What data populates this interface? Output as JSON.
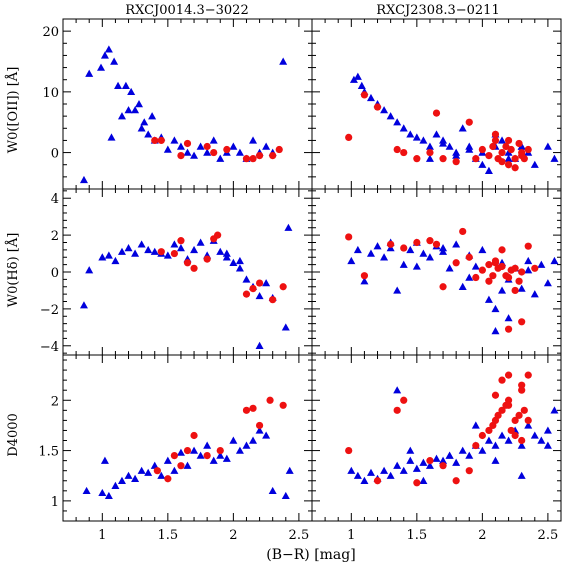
{
  "figure": {
    "column_titles": [
      "RXCJ0014.3−3022",
      "RXCJ2308.3−0211"
    ],
    "xlabel": "(B−R) [mag]",
    "colors": {
      "triangle": "#0000dd",
      "circle": "#ee1111"
    }
  },
  "chart_data": [
    {
      "type": "scatter",
      "cluster": "RXCJ0014.3−3022",
      "row": 0,
      "col": 0,
      "ylabel": "W0([OII]) [Å]",
      "xlim": [
        0.7,
        2.6
      ],
      "ylim": [
        -6,
        22
      ],
      "xticks": [
        1,
        1.5,
        2,
        2.5
      ],
      "xtick_labels": [
        "",
        "",
        "",
        ""
      ],
      "yticks": [
        0,
        10,
        20
      ],
      "ytick_labels": [
        "0",
        "10",
        "20"
      ],
      "series": [
        {
          "marker": "triangle",
          "x": [
            0.86,
            0.9,
            0.99,
            1.02,
            1.05,
            1.07,
            1.09,
            1.12,
            1.15,
            1.18,
            1.2,
            1.22,
            1.25,
            1.28,
            1.3,
            1.32,
            1.35,
            1.38,
            1.4,
            1.45,
            1.5,
            1.55,
            1.6,
            1.65,
            1.7,
            1.75,
            1.8,
            1.85,
            1.9,
            1.95,
            2.0,
            2.05,
            2.1,
            2.15,
            2.2,
            2.25,
            2.3,
            2.38
          ],
          "y": [
            -4.5,
            13,
            14,
            16,
            17,
            2.5,
            15,
            11,
            6,
            11,
            7,
            10,
            7,
            8,
            4,
            5,
            3,
            6,
            2,
            2.5,
            0.5,
            2,
            1,
            0,
            -0.5,
            1,
            0,
            2,
            -1,
            0,
            1,
            0,
            -1,
            2,
            0,
            1,
            0,
            15
          ]
        },
        {
          "marker": "circle",
          "x": [
            1.4,
            1.45,
            1.6,
            1.65,
            1.8,
            1.85,
            1.95,
            2.1,
            2.15,
            2.2,
            2.3,
            2.35
          ],
          "y": [
            2,
            2,
            -0.5,
            1.5,
            1,
            0,
            0.5,
            -1,
            -1,
            -0.5,
            -0.5,
            0.5
          ]
        }
      ]
    },
    {
      "type": "scatter",
      "cluster": "RXCJ2308.3−0211",
      "row": 0,
      "col": 1,
      "ylabel": "",
      "xlim": [
        0.7,
        2.6
      ],
      "ylim": [
        -6,
        22
      ],
      "xticks": [
        1,
        1.5,
        2,
        2.5
      ],
      "xtick_labels": [
        "",
        "",
        "",
        ""
      ],
      "yticks": [
        0,
        10,
        20
      ],
      "ytick_labels": [
        "",
        "",
        ""
      ],
      "series": [
        {
          "marker": "triangle",
          "x": [
            1.02,
            1.05,
            1.08,
            1.1,
            1.15,
            1.2,
            1.25,
            1.3,
            1.35,
            1.4,
            1.45,
            1.5,
            1.55,
            1.6,
            1.65,
            1.7,
            1.75,
            1.8,
            1.85,
            1.9,
            1.95,
            2.0,
            2.05,
            2.1,
            2.15,
            2.2,
            2.25,
            2.3,
            2.35,
            2.4,
            2.5,
            2.55,
            1.6,
            1.7,
            1.8,
            1.9,
            2.0,
            2.1,
            2.2,
            2.3
          ],
          "y": [
            12,
            12.5,
            11,
            10,
            9,
            8,
            7,
            6,
            5,
            4,
            3,
            2.5,
            2,
            1,
            3,
            2,
            1,
            0,
            4,
            1,
            -1,
            0,
            -3,
            1,
            2,
            0,
            -1,
            1,
            0,
            -2,
            1,
            -1,
            -1,
            1.5,
            -0.5,
            0.5,
            -2,
            3,
            -1,
            1
          ]
        },
        {
          "marker": "circle",
          "x": [
            0.98,
            1.1,
            1.2,
            1.35,
            1.4,
            1.5,
            1.6,
            1.65,
            1.7,
            1.8,
            1.9,
            1.95,
            2.0,
            2.05,
            2.08,
            2.1,
            2.12,
            2.15,
            2.18,
            2.2,
            2.22,
            2.25,
            2.28,
            2.3,
            2.32,
            2.35,
            2.1,
            2.2,
            2.3,
            2.15,
            2.25
          ],
          "y": [
            2.5,
            9.5,
            7.5,
            0.5,
            0,
            -1,
            0,
            6.5,
            -1,
            -1.5,
            5,
            -1,
            0.5,
            -0.5,
            1,
            2,
            -1,
            0,
            1,
            -2,
            0.5,
            -1,
            1.5,
            0,
            -1,
            0.5,
            3,
            2,
            -0.5,
            -1.5,
            -2.5
          ]
        }
      ]
    },
    {
      "type": "scatter",
      "cluster": "RXCJ0014.3−3022",
      "row": 1,
      "col": 0,
      "ylabel": "W0(Hδ) [Å]",
      "xlim": [
        0.7,
        2.6
      ],
      "ylim": [
        -4.5,
        4.5
      ],
      "xticks": [
        1,
        1.5,
        2,
        2.5
      ],
      "xtick_labels": [
        "",
        "",
        "",
        ""
      ],
      "yticks": [
        -4,
        -2,
        0,
        2,
        4
      ],
      "ytick_labels": [
        "−4",
        "−2",
        "0",
        "2",
        "4"
      ],
      "series": [
        {
          "marker": "triangle",
          "x": [
            0.86,
            0.9,
            1.0,
            1.05,
            1.1,
            1.15,
            1.2,
            1.25,
            1.3,
            1.35,
            1.4,
            1.45,
            1.5,
            1.55,
            1.6,
            1.65,
            1.7,
            1.75,
            1.8,
            1.85,
            1.9,
            1.95,
            2.0,
            2.05,
            2.1,
            2.15,
            2.2,
            2.25,
            2.3,
            2.4,
            2.42,
            2.2,
            2.05,
            1.95
          ],
          "y": [
            -1.8,
            0.1,
            0.8,
            0.9,
            0.6,
            1.1,
            1.3,
            1.0,
            1.5,
            1.2,
            1.1,
            1.0,
            0.9,
            1.5,
            1.3,
            0.7,
            1.2,
            1.6,
            0.9,
            1.7,
            1.1,
            0.8,
            0.5,
            0.2,
            -0.4,
            -0.8,
            -1.3,
            -0.6,
            -1.4,
            -3.0,
            2.4,
            -4.0,
            0.6,
            1.0
          ]
        },
        {
          "marker": "circle",
          "x": [
            1.45,
            1.55,
            1.6,
            1.65,
            1.7,
            1.8,
            1.85,
            1.88,
            2.1,
            2.15,
            2.2,
            2.3,
            2.38
          ],
          "y": [
            1.1,
            1.0,
            1.7,
            0.5,
            0.2,
            0.7,
            1.8,
            2.0,
            -1.2,
            -0.9,
            -0.6,
            -1.5,
            -0.8
          ]
        }
      ]
    },
    {
      "type": "scatter",
      "cluster": "RXCJ2308.3−0211",
      "row": 1,
      "col": 1,
      "ylabel": "",
      "xlim": [
        0.7,
        2.6
      ],
      "ylim": [
        -4.5,
        4.5
      ],
      "xticks": [
        1,
        1.5,
        2,
        2.5
      ],
      "xtick_labels": [
        "",
        "",
        "",
        ""
      ],
      "yticks": [
        -4,
        -2,
        0,
        2,
        4
      ],
      "ytick_labels": [
        "",
        "",
        "",
        "",
        ""
      ],
      "series": [
        {
          "marker": "triangle",
          "x": [
            1.0,
            1.05,
            1.1,
            1.15,
            1.2,
            1.25,
            1.3,
            1.35,
            1.4,
            1.45,
            1.5,
            1.55,
            1.6,
            1.65,
            1.7,
            1.75,
            1.8,
            1.85,
            1.9,
            1.95,
            2.0,
            2.05,
            2.1,
            2.15,
            2.2,
            2.25,
            2.3,
            2.35,
            2.4,
            2.45,
            2.5,
            2.55,
            1.3,
            1.5,
            1.7,
            1.9,
            2.1,
            2.15,
            2.2,
            2.35
          ],
          "y": [
            0.6,
            1.2,
            -0.5,
            1.0,
            1.4,
            0.8,
            1.3,
            -1.0,
            0.4,
            1.2,
            1.6,
            1.0,
            0.8,
            1.4,
            1.1,
            0.2,
            1.5,
            -0.8,
            0.9,
            0.3,
            1.2,
            -1.5,
            -2.0,
            0.5,
            -0.4,
            0.2,
            -0.9,
            0.1,
            -1.2,
            0.4,
            -0.6,
            0.6,
            1.6,
            0.3,
            1.3,
            -0.3,
            -3.2,
            -1.0,
            -2.5,
            0.6
          ]
        },
        {
          "marker": "circle",
          "x": [
            0.98,
            1.1,
            1.3,
            1.4,
            1.5,
            1.6,
            1.65,
            1.7,
            1.8,
            1.85,
            1.9,
            1.95,
            2.0,
            2.05,
            2.08,
            2.1,
            2.12,
            2.15,
            2.18,
            2.2,
            2.22,
            2.25,
            2.28,
            2.3,
            2.35,
            2.4,
            2.1,
            2.2,
            2.3,
            2.25,
            2.15,
            2.05
          ],
          "y": [
            1.9,
            -0.2,
            1.5,
            1.3,
            1.6,
            1.7,
            1.5,
            -0.8,
            0.5,
            2.2,
            0.8,
            -0.3,
            0.1,
            0.4,
            -0.2,
            0.5,
            0.2,
            0.3,
            -0.2,
            -0.3,
            0.1,
            0.2,
            -0.5,
            0.0,
            1.4,
            0.2,
            0.6,
            -3.1,
            -2.7,
            -1.0,
            1.2,
            -0.5
          ]
        }
      ]
    },
    {
      "type": "scatter",
      "cluster": "RXCJ0014.3−3022",
      "row": 2,
      "col": 0,
      "ylabel": "D4000",
      "xlim": [
        0.7,
        2.6
      ],
      "ylim": [
        0.8,
        2.45
      ],
      "xticks": [
        1,
        1.5,
        2,
        2.5
      ],
      "xtick_labels": [
        "1",
        "1.5",
        "2",
        "2.5"
      ],
      "yticks": [
        1,
        1.5,
        2
      ],
      "ytick_labels": [
        "1",
        "1.5",
        "2"
      ],
      "series": [
        {
          "marker": "triangle",
          "x": [
            0.88,
            1.0,
            1.02,
            1.05,
            1.1,
            1.15,
            1.2,
            1.25,
            1.3,
            1.35,
            1.4,
            1.45,
            1.5,
            1.55,
            1.6,
            1.65,
            1.7,
            1.75,
            1.8,
            1.85,
            1.9,
            1.95,
            2.0,
            2.05,
            2.1,
            2.15,
            2.2,
            2.25,
            2.3,
            2.4,
            2.43
          ],
          "y": [
            1.1,
            1.08,
            1.4,
            1.05,
            1.15,
            1.2,
            1.25,
            1.22,
            1.3,
            1.28,
            1.35,
            1.25,
            1.4,
            1.3,
            1.48,
            1.35,
            1.5,
            1.45,
            1.55,
            1.4,
            1.45,
            1.42,
            1.6,
            1.5,
            1.55,
            1.6,
            1.7,
            1.65,
            1.1,
            1.05,
            1.3
          ]
        },
        {
          "marker": "circle",
          "x": [
            1.42,
            1.5,
            1.55,
            1.6,
            1.65,
            1.7,
            1.8,
            1.9,
            2.1,
            2.15,
            2.2,
            2.28,
            2.38
          ],
          "y": [
            1.3,
            1.22,
            1.45,
            1.35,
            1.5,
            1.65,
            1.45,
            1.5,
            1.9,
            1.92,
            1.75,
            2.0,
            1.95
          ]
        }
      ]
    },
    {
      "type": "scatter",
      "cluster": "RXCJ2308.3−0211",
      "row": 2,
      "col": 1,
      "ylabel": "",
      "xlim": [
        0.7,
        2.6
      ],
      "ylim": [
        0.8,
        2.45
      ],
      "xticks": [
        1,
        1.5,
        2,
        2.5
      ],
      "xtick_labels": [
        "1",
        "1.5",
        "2",
        "2.5"
      ],
      "yticks": [
        1,
        1.5,
        2
      ],
      "ytick_labels": [
        "",
        "",
        ""
      ],
      "series": [
        {
          "marker": "triangle",
          "x": [
            1.0,
            1.05,
            1.1,
            1.15,
            1.2,
            1.25,
            1.3,
            1.35,
            1.4,
            1.45,
            1.5,
            1.55,
            1.6,
            1.65,
            1.7,
            1.75,
            1.8,
            1.85,
            1.9,
            1.95,
            2.0,
            2.05,
            2.1,
            2.15,
            2.2,
            2.25,
            2.3,
            2.35,
            2.4,
            2.45,
            2.5,
            2.55,
            1.35,
            1.45,
            1.55,
            1.75,
            1.95,
            2.1,
            2.3,
            2.5
          ],
          "y": [
            1.3,
            1.25,
            1.2,
            1.28,
            1.22,
            1.3,
            1.25,
            1.35,
            1.3,
            1.4,
            1.32,
            1.38,
            1.35,
            1.42,
            1.4,
            1.45,
            1.38,
            1.5,
            1.45,
            1.55,
            1.5,
            1.6,
            1.55,
            1.65,
            1.6,
            1.7,
            1.55,
            1.75,
            1.65,
            1.6,
            1.7,
            1.9,
            2.1,
            1.5,
            1.2,
            1.45,
            1.75,
            1.4,
            1.25,
            1.55
          ]
        },
        {
          "marker": "circle",
          "x": [
            0.98,
            1.2,
            1.35,
            1.4,
            1.5,
            1.6,
            1.7,
            1.8,
            1.9,
            1.95,
            2.0,
            2.05,
            2.08,
            2.1,
            2.12,
            2.15,
            2.18,
            2.2,
            2.22,
            2.25,
            2.28,
            2.3,
            2.32,
            2.35,
            2.15,
            2.2,
            2.25,
            2.3,
            2.1,
            2.2,
            2.3,
            2.35
          ],
          "y": [
            1.5,
            1.2,
            1.9,
            2.0,
            1.18,
            1.4,
            1.35,
            1.2,
            1.3,
            1.55,
            1.65,
            1.7,
            1.75,
            1.8,
            1.85,
            1.9,
            1.95,
            2.0,
            1.7,
            1.8,
            1.85,
            2.1,
            1.9,
            1.8,
            2.2,
            2.25,
            1.65,
            1.6,
            2.05,
            1.95,
            2.15,
            2.25
          ]
        }
      ]
    }
  ]
}
